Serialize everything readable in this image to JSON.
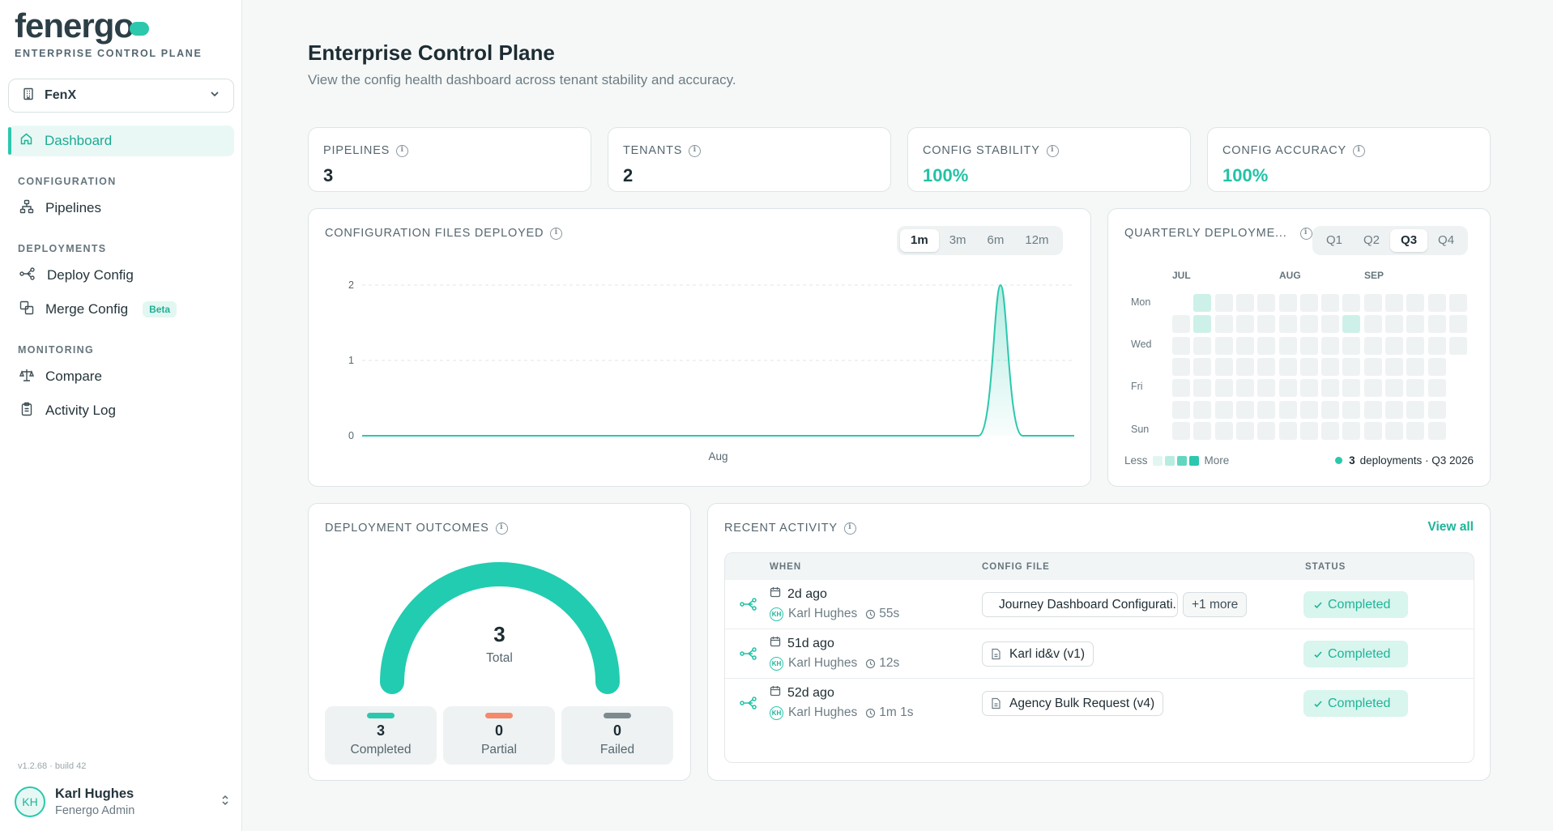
{
  "brand": {
    "name": "fenergo",
    "subtitle": "ENTERPRISE CONTROL PLANE"
  },
  "tenant_selector": {
    "value": "FenX"
  },
  "nav": {
    "dashboard": "Dashboard",
    "sections": {
      "configuration": "CONFIGURATION",
      "deployments": "DEPLOYMENTS",
      "monitoring": "MONITORING"
    },
    "pipelines": "Pipelines",
    "deploy_config": "Deploy Config",
    "merge_config": "Merge Config",
    "merge_badge": "Beta",
    "compare": "Compare",
    "activity_log": "Activity Log"
  },
  "version": "v1.2.68 · build 42",
  "user": {
    "initials": "KH",
    "name": "Karl Hughes",
    "role": "Fenergo Admin"
  },
  "page": {
    "title": "Enterprise Control Plane",
    "subtitle": "View the config health dashboard across tenant stability and accuracy."
  },
  "stats": [
    {
      "label": "PIPELINES",
      "value": "3"
    },
    {
      "label": "TENANTS",
      "value": "2"
    },
    {
      "label": "CONFIG STABILITY",
      "value": "100%"
    },
    {
      "label": "CONFIG ACCURACY",
      "value": "100%"
    }
  ],
  "files_chart": {
    "title": "CONFIGURATION FILES DEPLOYED",
    "ranges": [
      "1m",
      "3m",
      "6m",
      "12m"
    ],
    "selected_range": "1m"
  },
  "chart_data": {
    "type": "area",
    "title": "CONFIGURATION FILES DEPLOYED",
    "xlabel": "Aug",
    "ylabel": "",
    "yticks": [
      0,
      1,
      2
    ],
    "ylim": [
      0,
      2
    ],
    "x": [
      1,
      2,
      3,
      4,
      5,
      6,
      7,
      8,
      9,
      10,
      11,
      12,
      13,
      14,
      15,
      16,
      17,
      18,
      19,
      20,
      21,
      22,
      23,
      24,
      25,
      26,
      27,
      28,
      29,
      30
    ],
    "series": [
      {
        "values": [
          0,
          0,
          0,
          0,
          0,
          0,
          0,
          0,
          0,
          0,
          0,
          0,
          0,
          0,
          0,
          0,
          0,
          0,
          0,
          0,
          0,
          0,
          0,
          0,
          0,
          0,
          2,
          0,
          0,
          0
        ]
      }
    ],
    "grid": true,
    "color": "#2bc8ad"
  },
  "heatmap": {
    "title": "QUARTERLY DEPLOYME...",
    "quarters": [
      "Q1",
      "Q2",
      "Q3",
      "Q4"
    ],
    "selected_quarter": "Q3",
    "months": [
      "JUL",
      "AUG",
      "SEP"
    ],
    "day_labels": [
      "Mon",
      "Wed",
      "Fri",
      "Sun"
    ],
    "legend_less": "Less",
    "legend_more": "More",
    "legend_colors": [
      "#e2f6f1",
      "#b9ece0",
      "#63d6c0",
      "#2bc8ad"
    ],
    "summary_count": "3",
    "summary_text": "deployments · Q3 2026",
    "active_cells": [
      {
        "week": 1,
        "day": 0,
        "level": 1
      },
      {
        "week": 1,
        "day": 1,
        "level": 1
      },
      {
        "week": 8,
        "day": 1,
        "level": 1
      }
    ]
  },
  "outcomes": {
    "title": "DEPLOYMENT OUTCOMES",
    "total": "3",
    "total_label": "Total",
    "items": [
      {
        "value": "3",
        "label": "Completed",
        "color": "#2bc8ad"
      },
      {
        "value": "0",
        "label": "Partial",
        "color": "#f4896b"
      },
      {
        "value": "0",
        "label": "Failed",
        "color": "#7d8b91"
      }
    ]
  },
  "activity": {
    "title": "RECENT ACTIVITY",
    "view_all": "View all",
    "columns": [
      "WHEN",
      "CONFIG FILE",
      "STATUS"
    ],
    "rows": [
      {
        "when": "2d ago",
        "user": "Karl Hughes",
        "initials": "KH",
        "duration": "55s",
        "file": "Journey Dashboard Configurati...",
        "more": "+1 more",
        "status": "Completed"
      },
      {
        "when": "51d ago",
        "user": "Karl Hughes",
        "initials": "KH",
        "duration": "12s",
        "file": "Karl id&v (v1)",
        "more": "",
        "status": "Completed"
      },
      {
        "when": "52d ago",
        "user": "Karl Hughes",
        "initials": "KH",
        "duration": "1m 1s",
        "file": "Agency Bulk Request (v4)",
        "more": "",
        "status": "Completed"
      }
    ]
  }
}
